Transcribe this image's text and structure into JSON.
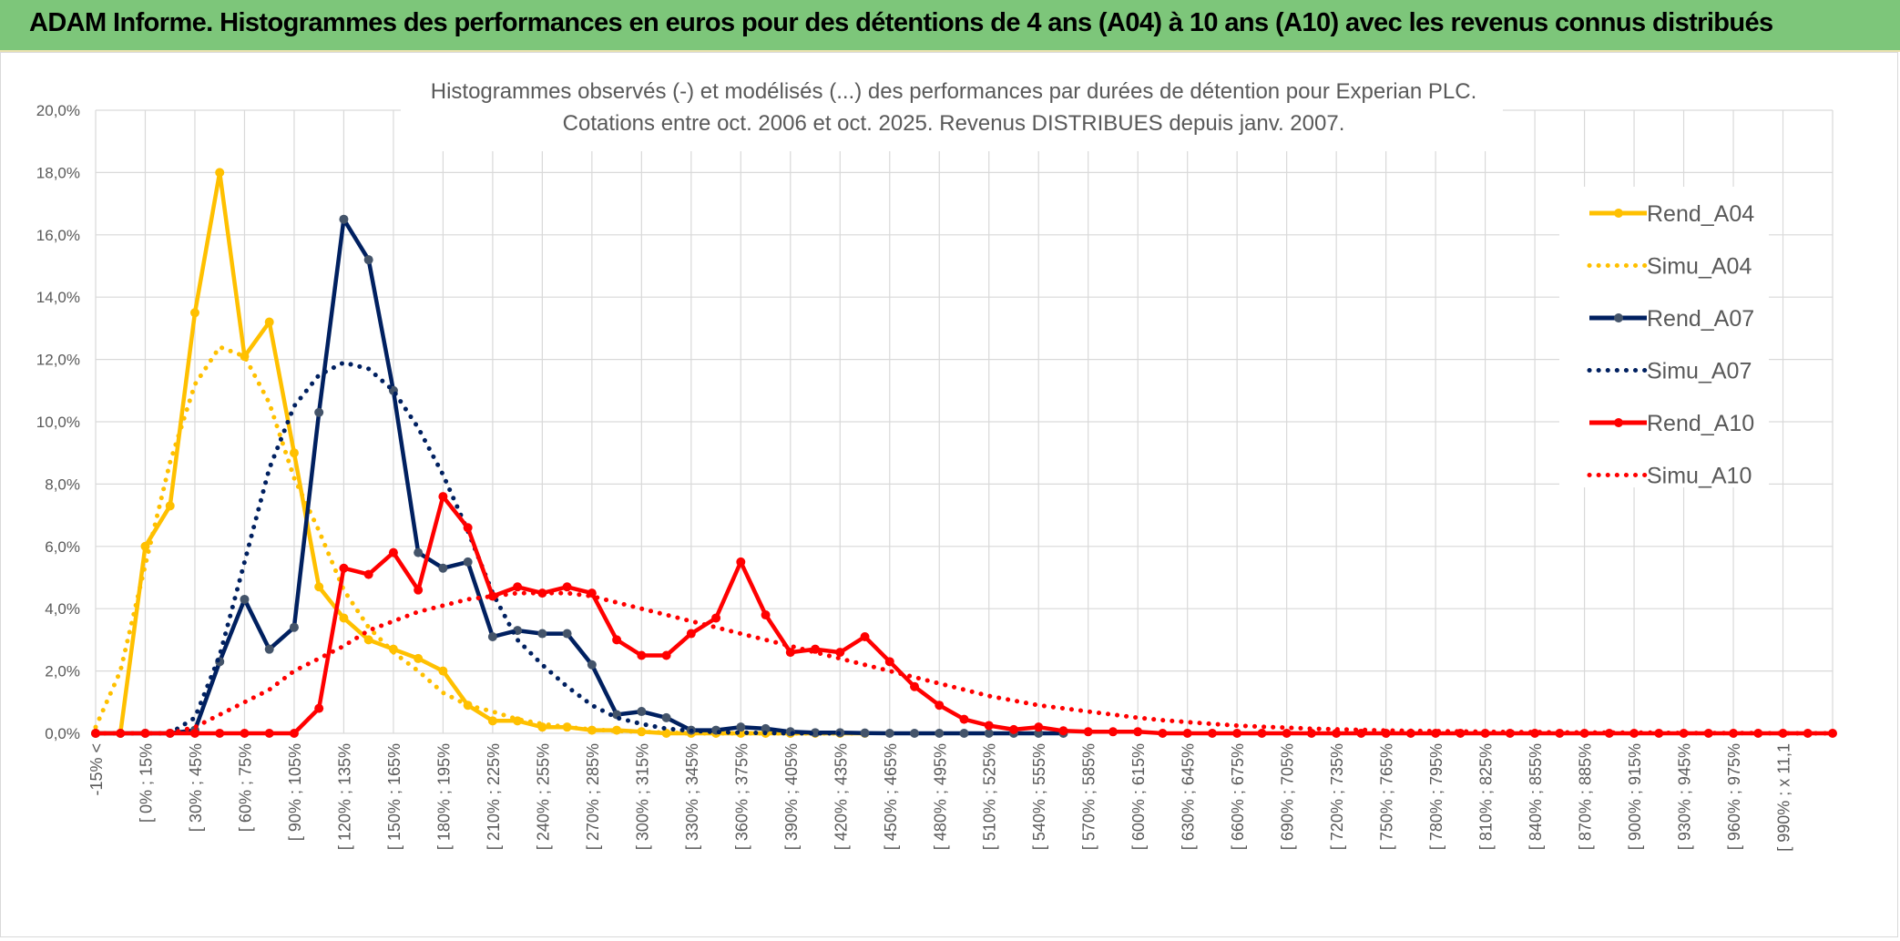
{
  "banner": {
    "title": "ADAM Informe. Histogrammes des performances en euros pour des détentions de 4 ans (A04) à 10 ans (A10) avec les revenus connus distribués"
  },
  "colors": {
    "banner_bg": "#7dc67a",
    "A04": "#ffc000",
    "A07": "#002060",
    "A07_marker": "#44546a",
    "A10": "#ff0000",
    "grid": "#d9d9d9"
  },
  "chart_data": {
    "type": "line",
    "title_lines": [
      "Histogrammes observés (-) et modélisés (...) des performances par durées de détention pour Experian PLC.",
      "Cotations entre oct. 2006 et oct. 2025. Revenus DISTRIBUES depuis janv. 2007."
    ],
    "ylim": [
      0,
      20
    ],
    "y_ticks": [
      "0,0%",
      "2,0%",
      "4,0%",
      "6,0%",
      "8,0%",
      "10,0%",
      "12,0%",
      "14,0%",
      "16,0%",
      "18,0%",
      "20,0%"
    ],
    "x_labels": [
      "-15% <",
      "[ 0% ; 15%",
      "[ 30% ; 45%",
      "[ 60% ; 75%",
      "[ 90% ; 105%",
      "[ 120% ; 135%",
      "[ 150% ; 165%",
      "[ 180% ; 195%",
      "[ 210% ; 225%",
      "[ 240% ; 255%",
      "[ 270% ; 285%",
      "[ 300% ; 315%",
      "[ 330% ; 345%",
      "[ 360% ; 375%",
      "[ 390% ; 405%",
      "[ 420% ; 435%",
      "[ 450% ; 465%",
      "[ 480% ; 495%",
      "[ 510% ; 525%",
      "[ 540% ; 555%",
      "[ 570% ; 585%",
      "[ 600% ; 615%",
      "[ 630% ; 645%",
      "[ 660% ; 675%",
      "[ 690% ; 705%",
      "[ 720% ; 735%",
      "[ 750% ; 765%",
      "[ 780% ; 795%",
      "[ 810% ; 825%",
      "[ 840% ; 855%",
      "[ 870% ; 885%",
      "[ 900% ; 915%",
      "[ 930% ; 945%",
      "[ 960% ; 975%",
      "[ 990% ; x 11,1"
    ],
    "x_count": 71,
    "legend_position": "right",
    "grid": true,
    "series": [
      {
        "name": "Rend_A04",
        "style": "solid",
        "color": "#ffc000",
        "values": [
          0,
          0,
          6,
          7.3,
          13.5,
          18,
          12.1,
          13.2,
          9,
          4.7,
          3.7,
          3,
          2.7,
          2.4,
          2,
          0.9,
          0.4,
          0.4,
          0.2,
          0.2,
          0.1,
          0.1,
          0.05,
          0,
          0,
          0,
          0,
          0,
          0,
          0,
          0,
          0
        ]
      },
      {
        "name": "Simu_A04",
        "style": "dotted",
        "color": "#ffc000",
        "values": [
          0.2,
          2,
          5.4,
          8.7,
          11.2,
          12.4,
          12.1,
          10.6,
          8.2,
          6.5,
          4.6,
          3.4,
          2.6,
          2,
          1.3,
          0.9,
          0.7,
          0.45,
          0.3,
          0.2,
          0.12,
          0.08,
          0.05,
          0.02,
          0,
          0,
          0,
          0,
          0,
          0,
          0,
          0
        ]
      },
      {
        "name": "Rend_A07",
        "style": "solid",
        "color": "#002060",
        "values": [
          0,
          0,
          0,
          0,
          0.1,
          2.3,
          4.3,
          2.7,
          3.4,
          10.3,
          16.5,
          15.2,
          11,
          5.8,
          5.3,
          5.5,
          3.1,
          3.3,
          3.2,
          3.2,
          2.2,
          0.6,
          0.7,
          0.5,
          0.1,
          0.1,
          0.2,
          0.15,
          0.05,
          0.02,
          0.02,
          0.01,
          0,
          0,
          0,
          0,
          0,
          0,
          0,
          0
        ]
      },
      {
        "name": "Simu_A07",
        "style": "dotted",
        "color": "#002060",
        "values": [
          0,
          0,
          0,
          0,
          0.5,
          2.5,
          5.5,
          8.5,
          10.5,
          11.5,
          11.9,
          11.7,
          11.0,
          9.8,
          8.3,
          6.5,
          4.5,
          3.0,
          2.2,
          1.5,
          0.9,
          0.5,
          0.3,
          0.15,
          0.08,
          0.04,
          0.02,
          0.01,
          0,
          0,
          0
        ]
      },
      {
        "name": "Rend_A10",
        "style": "solid",
        "color": "#ff0000",
        "values": [
          0,
          0,
          0,
          0,
          0,
          0,
          0,
          0,
          0,
          0.8,
          5.3,
          5.1,
          5.8,
          4.6,
          7.6,
          6.6,
          4.4,
          4.7,
          4.5,
          4.7,
          4.5,
          3.0,
          2.5,
          2.5,
          3.2,
          3.7,
          5.5,
          3.8,
          2.6,
          2.7,
          2.6,
          3.1,
          2.3,
          1.5,
          0.9,
          0.45,
          0.25,
          0.12,
          0.2,
          0.08,
          0.05,
          0.05,
          0.05,
          0,
          0,
          0,
          0,
          0,
          0,
          0,
          0,
          0,
          0,
          0,
          0,
          0,
          0,
          0,
          0,
          0,
          0,
          0,
          0,
          0,
          0,
          0,
          0,
          0,
          0,
          0,
          0
        ]
      },
      {
        "name": "Simu_A10",
        "style": "dotted",
        "color": "#ff0000",
        "values": [
          0,
          0,
          0,
          0,
          0.2,
          0.6,
          1.0,
          1.4,
          2.0,
          2.4,
          2.8,
          3.3,
          3.6,
          3.9,
          4.1,
          4.3,
          4.4,
          4.5,
          4.5,
          4.5,
          4.4,
          4.2,
          4.0,
          3.8,
          3.6,
          3.4,
          3.2,
          3.0,
          2.8,
          2.6,
          2.4,
          2.2,
          2.0,
          1.8,
          1.6,
          1.4,
          1.2,
          1.05,
          0.9,
          0.8,
          0.7,
          0.6,
          0.5,
          0.42,
          0.36,
          0.3,
          0.25,
          0.21,
          0.18,
          0.15,
          0.13,
          0.11,
          0.09,
          0.08,
          0.07,
          0.06,
          0.05,
          0.04,
          0.04,
          0.03,
          0.03,
          0.02,
          0.02,
          0.02,
          0.01,
          0.01,
          0.01,
          0.01,
          0,
          0,
          0
        ]
      }
    ]
  }
}
